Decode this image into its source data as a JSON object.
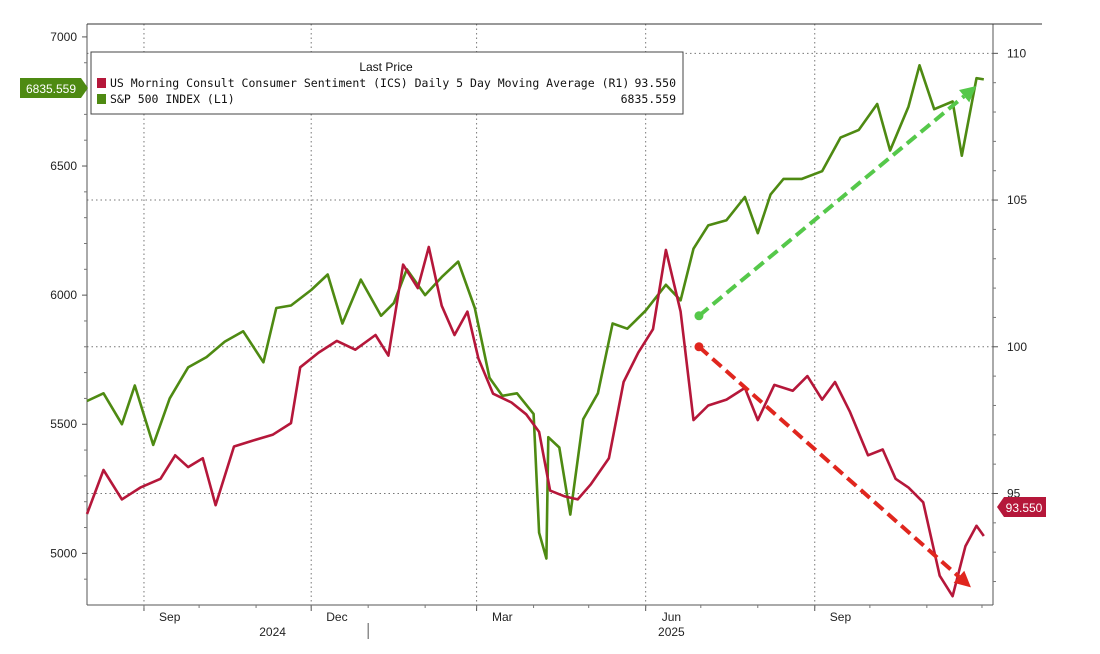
{
  "chart_data": {
    "type": "line",
    "title": "",
    "xlabel": "",
    "legend": {
      "title": "Last Price",
      "placement": "top-left",
      "entries": [
        {
          "series": "ics",
          "label": "US Morning Consult Consumer Sentiment (ICS) Daily 5 Day Moving Average  (R1)",
          "value": "93.550",
          "color": "#b5173a"
        },
        {
          "series": "spx",
          "label": "S&P 500 INDEX  (L1)",
          "value": "6835.559",
          "color": "#4e8a12"
        }
      ]
    },
    "x_ticks": {
      "months": [
        "Sep",
        "Dec",
        "Mar",
        "Jun",
        "Sep"
      ],
      "years": [
        "2024",
        "2025"
      ]
    },
    "left_axis": {
      "ticks": [
        "5000",
        "5500",
        "6000",
        "6500",
        "7000"
      ],
      "ylim": [
        4800,
        7050
      ]
    },
    "right_axis": {
      "ticks": [
        "95",
        "100",
        "105",
        "110"
      ],
      "ylim": [
        91.2,
        111
      ]
    },
    "grid": true,
    "last_value_badges": {
      "left": {
        "text": "6835.559",
        "color": "#4e8a12"
      },
      "right": {
        "text": "93.550",
        "color": "#b5173a"
      }
    },
    "series": [
      {
        "name": "S&P 500 INDEX",
        "axis": "left",
        "color": "#4e8a12",
        "points": [
          [
            "2024-08-01",
            5590
          ],
          [
            "2024-08-10",
            5620
          ],
          [
            "2024-08-20",
            5500
          ],
          [
            "2024-08-27",
            5650
          ],
          [
            "2024-09-06",
            5420
          ],
          [
            "2024-09-15",
            5600
          ],
          [
            "2024-09-25",
            5720
          ],
          [
            "2024-10-05",
            5760
          ],
          [
            "2024-10-15",
            5820
          ],
          [
            "2024-10-25",
            5860
          ],
          [
            "2024-11-05",
            5740
          ],
          [
            "2024-11-12",
            5950
          ],
          [
            "2024-11-20",
            5960
          ],
          [
            "2024-12-01",
            6020
          ],
          [
            "2024-12-10",
            6080
          ],
          [
            "2024-12-18",
            5890
          ],
          [
            "2024-12-28",
            6060
          ],
          [
            "2025-01-08",
            5920
          ],
          [
            "2025-01-15",
            5970
          ],
          [
            "2025-01-22",
            6100
          ],
          [
            "2025-02-01",
            6000
          ],
          [
            "2025-02-10",
            6070
          ],
          [
            "2025-02-19",
            6130
          ],
          [
            "2025-02-28",
            5950
          ],
          [
            "2025-03-08",
            5680
          ],
          [
            "2025-03-15",
            5610
          ],
          [
            "2025-03-23",
            5620
          ],
          [
            "2025-04-01",
            5540
          ],
          [
            "2025-04-04",
            5080
          ],
          [
            "2025-04-08",
            4980
          ],
          [
            "2025-04-09",
            5450
          ],
          [
            "2025-04-15",
            5410
          ],
          [
            "2025-04-21",
            5150
          ],
          [
            "2025-04-28",
            5520
          ],
          [
            "2025-05-06",
            5620
          ],
          [
            "2025-05-14",
            5890
          ],
          [
            "2025-05-22",
            5870
          ],
          [
            "2025-06-01",
            5940
          ],
          [
            "2025-06-12",
            6040
          ],
          [
            "2025-06-20",
            5980
          ],
          [
            "2025-06-27",
            6180
          ],
          [
            "2025-07-05",
            6270
          ],
          [
            "2025-07-15",
            6290
          ],
          [
            "2025-07-25",
            6380
          ],
          [
            "2025-08-01",
            6240
          ],
          [
            "2025-08-08",
            6390
          ],
          [
            "2025-08-15",
            6450
          ],
          [
            "2025-08-25",
            6450
          ],
          [
            "2025-09-05",
            6480
          ],
          [
            "2025-09-15",
            6610
          ],
          [
            "2025-09-25",
            6640
          ],
          [
            "2025-10-05",
            6740
          ],
          [
            "2025-10-12",
            6560
          ],
          [
            "2025-10-22",
            6730
          ],
          [
            "2025-10-28",
            6890
          ],
          [
            "2025-11-05",
            6720
          ],
          [
            "2025-11-15",
            6750
          ],
          [
            "2025-11-20",
            6540
          ],
          [
            "2025-11-28",
            6840
          ],
          [
            "2025-12-02",
            6835.559
          ]
        ]
      },
      {
        "name": "US Morning Consult Consumer Sentiment (ICS) Daily 5 Day Moving Average",
        "axis": "right",
        "color": "#b5173a",
        "points": [
          [
            "2024-08-01",
            94.3
          ],
          [
            "2024-08-10",
            95.8
          ],
          [
            "2024-08-20",
            94.8
          ],
          [
            "2024-08-30",
            95.2
          ],
          [
            "2024-09-10",
            95.5
          ],
          [
            "2024-09-18",
            96.3
          ],
          [
            "2024-09-25",
            95.9
          ],
          [
            "2024-10-03",
            96.2
          ],
          [
            "2024-10-10",
            94.6
          ],
          [
            "2024-10-20",
            96.6
          ],
          [
            "2024-10-30",
            96.8
          ],
          [
            "2024-11-10",
            97.0
          ],
          [
            "2024-11-20",
            97.4
          ],
          [
            "2024-11-25",
            99.3
          ],
          [
            "2024-12-05",
            99.8
          ],
          [
            "2024-12-15",
            100.2
          ],
          [
            "2024-12-25",
            99.9
          ],
          [
            "2025-01-05",
            100.4
          ],
          [
            "2025-01-12",
            99.7
          ],
          [
            "2025-01-20",
            102.8
          ],
          [
            "2025-01-28",
            102.0
          ],
          [
            "2025-02-03",
            103.4
          ],
          [
            "2025-02-10",
            101.4
          ],
          [
            "2025-02-17",
            100.4
          ],
          [
            "2025-02-24",
            101.2
          ],
          [
            "2025-03-02",
            99.6
          ],
          [
            "2025-03-10",
            98.4
          ],
          [
            "2025-03-20",
            98.1
          ],
          [
            "2025-03-28",
            97.7
          ],
          [
            "2025-04-04",
            97.1
          ],
          [
            "2025-04-10",
            95.1
          ],
          [
            "2025-04-18",
            94.9
          ],
          [
            "2025-04-25",
            94.8
          ],
          [
            "2025-05-02",
            95.3
          ],
          [
            "2025-05-12",
            96.2
          ],
          [
            "2025-05-20",
            98.8
          ],
          [
            "2025-05-28",
            99.8
          ],
          [
            "2025-06-05",
            100.6
          ],
          [
            "2025-06-12",
            103.3
          ],
          [
            "2025-06-20",
            101.2
          ],
          [
            "2025-06-27",
            97.5
          ],
          [
            "2025-07-05",
            98.0
          ],
          [
            "2025-07-15",
            98.2
          ],
          [
            "2025-07-25",
            98.6
          ],
          [
            "2025-08-01",
            97.5
          ],
          [
            "2025-08-10",
            98.7
          ],
          [
            "2025-08-20",
            98.5
          ],
          [
            "2025-08-28",
            99.0
          ],
          [
            "2025-09-05",
            98.2
          ],
          [
            "2025-09-12",
            98.8
          ],
          [
            "2025-09-20",
            97.8
          ],
          [
            "2025-09-30",
            96.3
          ],
          [
            "2025-10-08",
            96.5
          ],
          [
            "2025-10-15",
            95.5
          ],
          [
            "2025-10-22",
            95.2
          ],
          [
            "2025-10-30",
            94.7
          ],
          [
            "2025-11-08",
            92.2
          ],
          [
            "2025-11-15",
            91.5
          ],
          [
            "2025-11-22",
            93.2
          ],
          [
            "2025-11-28",
            93.9
          ],
          [
            "2025-12-02",
            93.55
          ]
        ]
      }
    ],
    "annotations": [
      {
        "type": "dashed-arrow",
        "color": "#55c84a",
        "from": [
          "2025-06-30",
          5920
        ],
        "to": [
          "2025-11-28",
          6810
        ],
        "axis": "left"
      },
      {
        "type": "dashed-arrow",
        "color": "#e0261e",
        "from": [
          "2025-06-30",
          100.0
        ],
        "to": [
          "2025-11-25",
          91.8
        ],
        "axis": "right"
      }
    ]
  }
}
